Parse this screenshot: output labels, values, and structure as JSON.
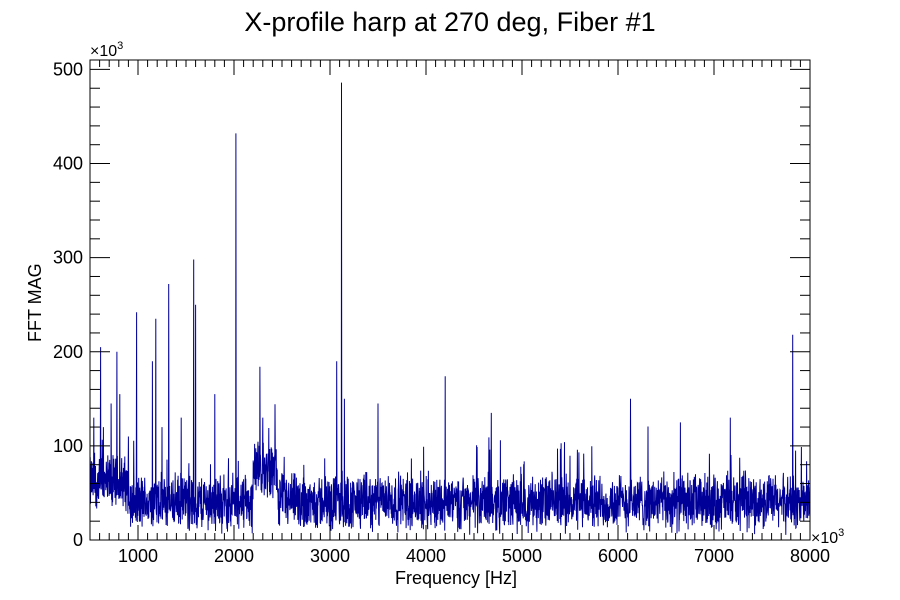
{
  "chart_data": {
    "type": "line",
    "title": "X-profile harp at 270 deg, Fiber #1",
    "xlabel": "Frequency [Hz]",
    "ylabel": "FFT MAG",
    "xlim": [
      500,
      8000
    ],
    "ylim": [
      0,
      510
    ],
    "x_multiplier": "×10",
    "x_multiplier_exp": "3",
    "y_multiplier": "×10",
    "y_multiplier_exp": "3",
    "x_ticks": [
      1000,
      2000,
      3000,
      4000,
      5000,
      6000,
      7000,
      8000
    ],
    "x_tick_labels": [
      "1000",
      "2000",
      "3000",
      "4000",
      "5000",
      "6000",
      "7000",
      "8000"
    ],
    "y_ticks": [
      0,
      100,
      200,
      300,
      400,
      500
    ],
    "y_tick_labels": [
      "0",
      "100",
      "200",
      "300",
      "400",
      "500"
    ],
    "grid": false,
    "series": [
      {
        "color": "#000099",
        "baseline_level": 40,
        "noise_amplitude": 22,
        "peaks": [
          {
            "x": 540,
            "y": 130
          },
          {
            "x": 610,
            "y": 205
          },
          {
            "x": 640,
            "y": 120
          },
          {
            "x": 720,
            "y": 145
          },
          {
            "x": 780,
            "y": 200
          },
          {
            "x": 810,
            "y": 155
          },
          {
            "x": 900,
            "y": 110
          },
          {
            "x": 985,
            "y": 242
          },
          {
            "x": 1150,
            "y": 190
          },
          {
            "x": 1185,
            "y": 235
          },
          {
            "x": 1250,
            "y": 120
          },
          {
            "x": 1320,
            "y": 272
          },
          {
            "x": 1450,
            "y": 130
          },
          {
            "x": 1580,
            "y": 298
          },
          {
            "x": 1600,
            "y": 250
          },
          {
            "x": 1800,
            "y": 155
          },
          {
            "x": 2020,
            "y": 432
          },
          {
            "x": 2270,
            "y": 184
          },
          {
            "x": 2300,
            "y": 130
          },
          {
            "x": 3070,
            "y": 190
          },
          {
            "x": 3120,
            "y": 486
          },
          {
            "x": 3150,
            "y": 150
          },
          {
            "x": 3500,
            "y": 145
          },
          {
            "x": 4200,
            "y": 174
          },
          {
            "x": 4680,
            "y": 135
          },
          {
            "x": 6130,
            "y": 150
          },
          {
            "x": 6650,
            "y": 125
          },
          {
            "x": 7170,
            "y": 130
          },
          {
            "x": 7820,
            "y": 218
          },
          {
            "x": 7850,
            "y": 95
          }
        ],
        "bumps": [
          {
            "x_from": 2200,
            "x_to": 2450,
            "level": 75
          },
          {
            "x_from": 500,
            "x_to": 900,
            "level": 60
          }
        ]
      }
    ]
  }
}
